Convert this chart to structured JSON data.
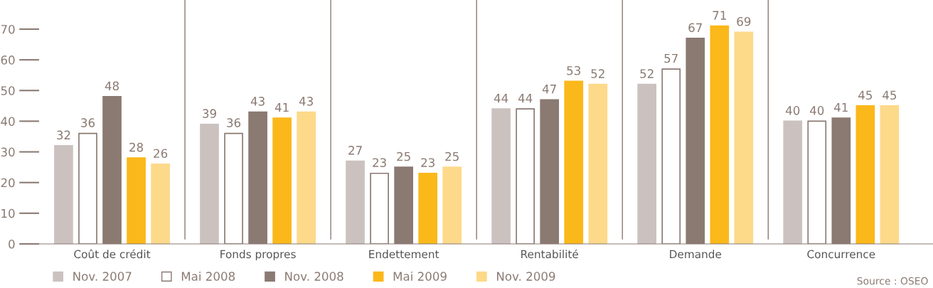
{
  "chart_data": {
    "type": "bar",
    "categories": [
      "Coût de crédit",
      "Fonds propres",
      "Endettement",
      "Rentabilité",
      "Demande",
      "Concurrence"
    ],
    "series": [
      {
        "name": "Nov. 2007",
        "color": "#cbc2c0",
        "values": [
          32,
          39,
          27,
          44,
          52,
          40
        ]
      },
      {
        "name": "Mai 2008",
        "color": "#ffffff",
        "values": [
          36,
          36,
          23,
          44,
          57,
          40
        ]
      },
      {
        "name": "Nov. 2008",
        "color": "#8a7a72",
        "values": [
          48,
          43,
          25,
          47,
          67,
          41
        ]
      },
      {
        "name": "Mai 2009",
        "color": "#fbb81a",
        "values": [
          28,
          41,
          23,
          53,
          71,
          45
        ]
      },
      {
        "name": "Nov. 2009",
        "color": "#fdd98a",
        "values": [
          26,
          43,
          25,
          52,
          69,
          45
        ]
      }
    ],
    "ylim": [
      0,
      79.5
    ],
    "yticks": [
      0,
      10,
      20,
      30,
      40,
      50,
      60,
      70
    ],
    "data_labels": true,
    "legend": "bottom left",
    "grid": false,
    "annotations": [
      "Source : OSEO"
    ]
  }
}
